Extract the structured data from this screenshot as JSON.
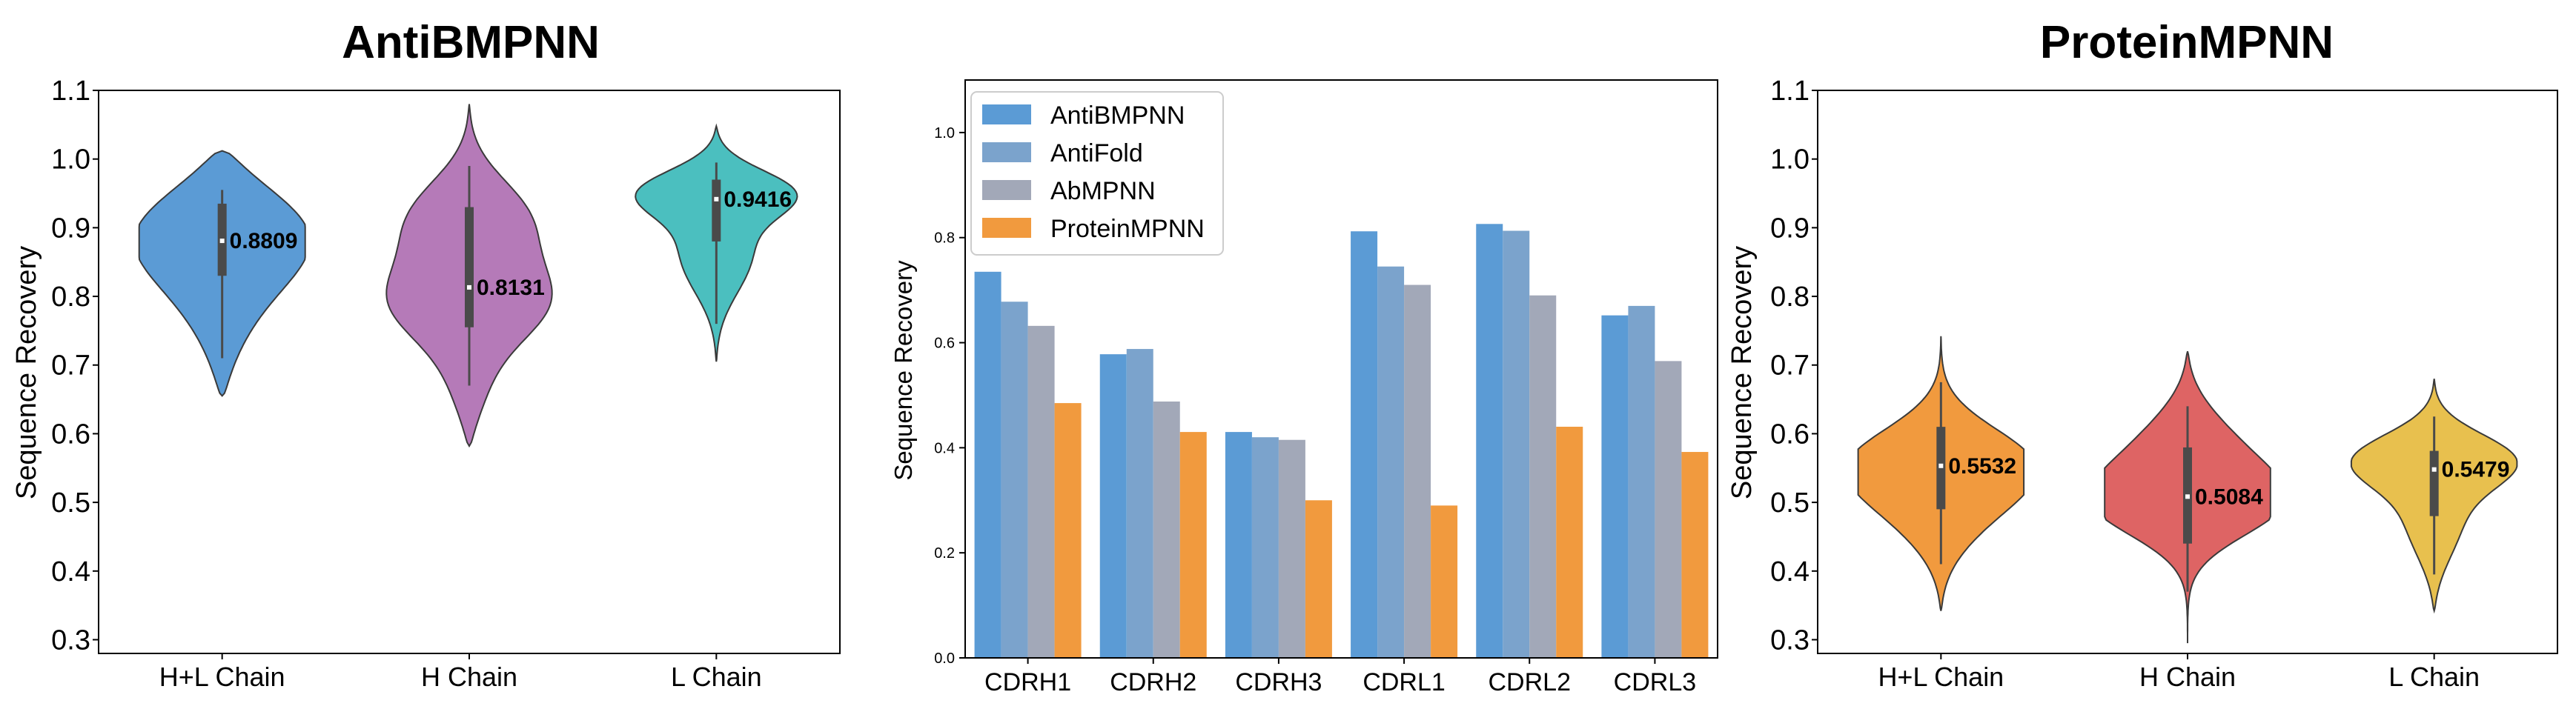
{
  "chart_data": [
    {
      "type": "violin",
      "title": "AntiBMPNN",
      "xlabel": "",
      "ylabel": "Sequence Recovery",
      "ylim": [
        0.28,
        1.1
      ],
      "yticks": [
        0.3,
        0.4,
        0.5,
        0.6,
        0.7,
        0.8,
        0.9,
        1.0,
        1.1
      ],
      "grid": false,
      "categories": [
        "H+L Chain",
        "H Chain",
        "L Chain"
      ],
      "colors": [
        "#5b9bd5",
        "#b57ab8",
        "#4bbfbf"
      ],
      "medians": [
        0.8809,
        0.8131,
        0.9416
      ],
      "median_labels": [
        "0.8809",
        "0.8131",
        "0.9416"
      ],
      "quartiles": [
        [
          0.83,
          0.935
        ],
        [
          0.755,
          0.93
        ],
        [
          0.88,
          0.97
        ]
      ],
      "whiskers": [
        [
          0.71,
          0.955
        ],
        [
          0.67,
          0.99
        ],
        [
          0.76,
          0.995
        ]
      ],
      "extent": [
        [
          0.655,
          1.012
        ],
        [
          0.582,
          1.08
        ],
        [
          0.705,
          1.048
        ]
      ],
      "bulges": [
        [
          {
            "y": 0.905,
            "w": 0.95,
            "s": 0.075
          },
          {
            "y": 0.8,
            "w": 0.35,
            "s": 0.1
          }
        ],
        [
          {
            "y": 0.92,
            "w": 0.75,
            "s": 0.06
          },
          {
            "y": 0.79,
            "w": 0.95,
            "s": 0.06
          },
          {
            "y": 0.66,
            "w": 0.25,
            "s": 0.06
          }
        ],
        [
          {
            "y": 0.955,
            "w": 1.0,
            "s": 0.035
          },
          {
            "y": 0.86,
            "w": 0.45,
            "s": 0.06
          }
        ]
      ]
    },
    {
      "type": "bar",
      "title": "",
      "xlabel": "",
      "ylabel": "Sequence Recovery",
      "ylim": [
        0.0,
        1.1
      ],
      "yticks": [
        0.0,
        0.2,
        0.4,
        0.6,
        0.8,
        1.0
      ],
      "grid": false,
      "legend_position": "upper-left",
      "categories": [
        "CDRH1",
        "CDRH2",
        "CDRH3",
        "CDRL1",
        "CDRL2",
        "CDRL3"
      ],
      "series": [
        {
          "name": "AntiBMPNN",
          "color": "#5b9bd5",
          "values": [
            0.735,
            0.578,
            0.43,
            0.812,
            0.826,
            0.652
          ]
        },
        {
          "name": "AntiFold",
          "color": "#7ba3cc",
          "values": [
            0.678,
            0.588,
            0.42,
            0.745,
            0.813,
            0.67
          ]
        },
        {
          "name": "AbMPNN",
          "color": "#a2a8b8",
          "values": [
            0.632,
            0.488,
            0.415,
            0.71,
            0.69,
            0.565
          ]
        },
        {
          "name": "ProteinMPNN",
          "color": "#f19a3e",
          "values": [
            0.485,
            0.43,
            0.3,
            0.29,
            0.44,
            0.392
          ]
        }
      ]
    },
    {
      "type": "violin",
      "title": "ProteinMPNN",
      "xlabel": "",
      "ylabel": "Sequence Recovery",
      "ylim": [
        0.28,
        1.1
      ],
      "yticks": [
        0.3,
        0.4,
        0.5,
        0.6,
        0.7,
        0.8,
        0.9,
        1.0,
        1.1
      ],
      "grid": false,
      "categories": [
        "H+L Chain",
        "H Chain",
        "L Chain"
      ],
      "colors": [
        "#f19a3e",
        "#de6464",
        "#e8c04e"
      ],
      "medians": [
        0.5532,
        0.5084,
        0.5479
      ],
      "median_labels": [
        "0.5532",
        "0.5084",
        "0.5479"
      ],
      "quartiles": [
        [
          0.49,
          0.61
        ],
        [
          0.44,
          0.58
        ],
        [
          0.48,
          0.575
        ]
      ],
      "whiskers": [
        [
          0.41,
          0.675
        ],
        [
          0.37,
          0.64
        ],
        [
          0.395,
          0.625
        ]
      ],
      "extent": [
        [
          0.342,
          0.742
        ],
        [
          0.295,
          0.72
        ],
        [
          0.342,
          0.68
        ]
      ],
      "bulges": [
        [
          {
            "y": 0.56,
            "w": 1.0,
            "s": 0.055
          },
          {
            "y": 0.48,
            "w": 0.45,
            "s": 0.06
          }
        ],
        [
          {
            "y": 0.495,
            "w": 1.0,
            "s": 0.05
          },
          {
            "y": 0.58,
            "w": 0.6,
            "s": 0.06
          }
        ],
        [
          {
            "y": 0.565,
            "w": 1.0,
            "s": 0.04
          },
          {
            "y": 0.47,
            "w": 0.35,
            "s": 0.06
          }
        ]
      ]
    }
  ]
}
